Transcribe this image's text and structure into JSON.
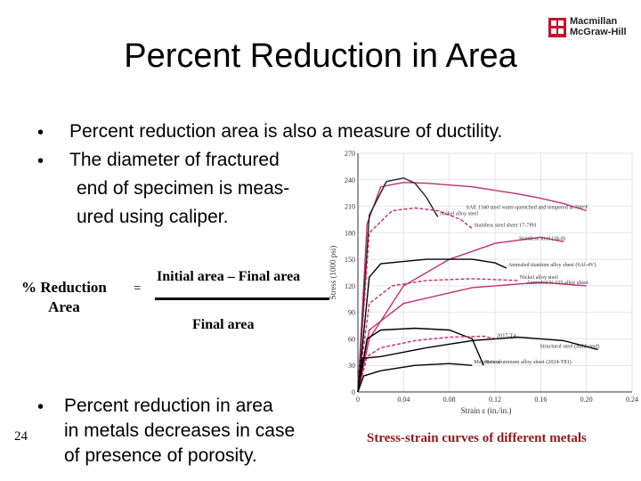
{
  "slide": {
    "title": "Percent Reduction in Area",
    "logo_line1": "Macmillan",
    "logo_line2": "McGraw-Hill",
    "bullets": [
      "Percent reduction area is also a measure of ductility.",
      "The diameter of fractured"
    ],
    "bullet2_cont1": "end of specimen is meas-",
    "bullet2_cont2": "ured using caliper.",
    "formula": {
      "lhs_line1": "% Reduction",
      "lhs_line2": "Area",
      "equals": "=",
      "numerator": "Initial area – Final area",
      "denominator": "Final area"
    },
    "bottom_bullet_lines": [
      "Percent reduction in area",
      "in metals decreases in case",
      "of presence of porosity."
    ],
    "caption": "Stress-strain curves of different metals",
    "page_number": "24"
  },
  "chart_data": {
    "type": "line",
    "xlabel": "Strain ε (in./in.)",
    "ylabel": "Stress (1000 psi)",
    "xlim": [
      0,
      0.24
    ],
    "ylim": [
      0,
      270
    ],
    "x_ticks": [
      "0",
      "0.04",
      "0.08",
      "0.12",
      "0.16",
      "0.20",
      "0.24"
    ],
    "y_ticks": [
      "0",
      "30",
      "60",
      "90",
      "120",
      "150",
      "180",
      "210",
      "240",
      "270"
    ],
    "series": [
      {
        "name": "SAE 1340 steel water-quenched and tempered at 700°F",
        "color": "#c0306a",
        "x": [
          0,
          0.008,
          0.02,
          0.04,
          0.06,
          0.08,
          0.1,
          0.12,
          0.14,
          0.16,
          0.18,
          0.2
        ],
        "y": [
          0,
          190,
          232,
          237,
          236,
          234,
          232,
          228,
          224,
          219,
          213,
          205
        ]
      },
      {
        "name": "Nickel alloy steel",
        "color": "#222222",
        "x": [
          0,
          0.01,
          0.025,
          0.04,
          0.05,
          0.06,
          0.07
        ],
        "y": [
          0,
          200,
          238,
          242,
          236,
          220,
          198
        ]
      },
      {
        "name": "Stainless steel sheet 17-7PH",
        "color": "#c0306a",
        "x": [
          0,
          0.01,
          0.03,
          0.05,
          0.07,
          0.09,
          0.1
        ],
        "y": [
          0,
          180,
          205,
          208,
          205,
          195,
          185
        ]
      },
      {
        "name": "Stainless steel (18-8)",
        "color": "#c0306a",
        "x": [
          0,
          0.01,
          0.04,
          0.08,
          0.12,
          0.16,
          0.18
        ],
        "y": [
          0,
          60,
          120,
          150,
          168,
          175,
          170
        ]
      },
      {
        "name": "Annealed titanium alloy sheet (6Al-4V)",
        "color": "#000000",
        "x": [
          0,
          0.01,
          0.02,
          0.06,
          0.1,
          0.12,
          0.13
        ],
        "y": [
          0,
          130,
          145,
          150,
          150,
          146,
          140
        ]
      },
      {
        "name": "Nickel alloy steel",
        "color": "#c0306a",
        "x": [
          0,
          0.01,
          0.03,
          0.06,
          0.1,
          0.14
        ],
        "y": [
          0,
          100,
          120,
          126,
          128,
          126
        ]
      },
      {
        "name": "Annealed N-155 alloy sheet",
        "color": "#c0306a",
        "x": [
          0,
          0.01,
          0.04,
          0.1,
          0.16,
          0.2
        ],
        "y": [
          0,
          70,
          100,
          118,
          124,
          120
        ]
      },
      {
        "name": "Bare aluminum alloy sheet (2024-T81)",
        "color": "#000000",
        "x": [
          0,
          0.008,
          0.02,
          0.05,
          0.08,
          0.1,
          0.11
        ],
        "y": [
          0,
          60,
          70,
          72,
          70,
          60,
          30
        ]
      },
      {
        "name": "2017-T4",
        "color": "#c0306a",
        "x": [
          0,
          0.008,
          0.02,
          0.05,
          0.08,
          0.11,
          0.12
        ],
        "y": [
          0,
          40,
          50,
          58,
          62,
          63,
          60
        ]
      },
      {
        "name": "Structural steel (mild steel)",
        "color": "#000000",
        "x": [
          0,
          0.004,
          0.02,
          0.06,
          0.1,
          0.14,
          0.18,
          0.21
        ],
        "y": [
          0,
          38,
          40,
          50,
          58,
          62,
          58,
          48
        ]
      },
      {
        "name": "Magnesium",
        "color": "#000000",
        "x": [
          0,
          0.005,
          0.02,
          0.05,
          0.08,
          0.1
        ],
        "y": [
          0,
          18,
          24,
          30,
          32,
          30
        ]
      }
    ]
  }
}
